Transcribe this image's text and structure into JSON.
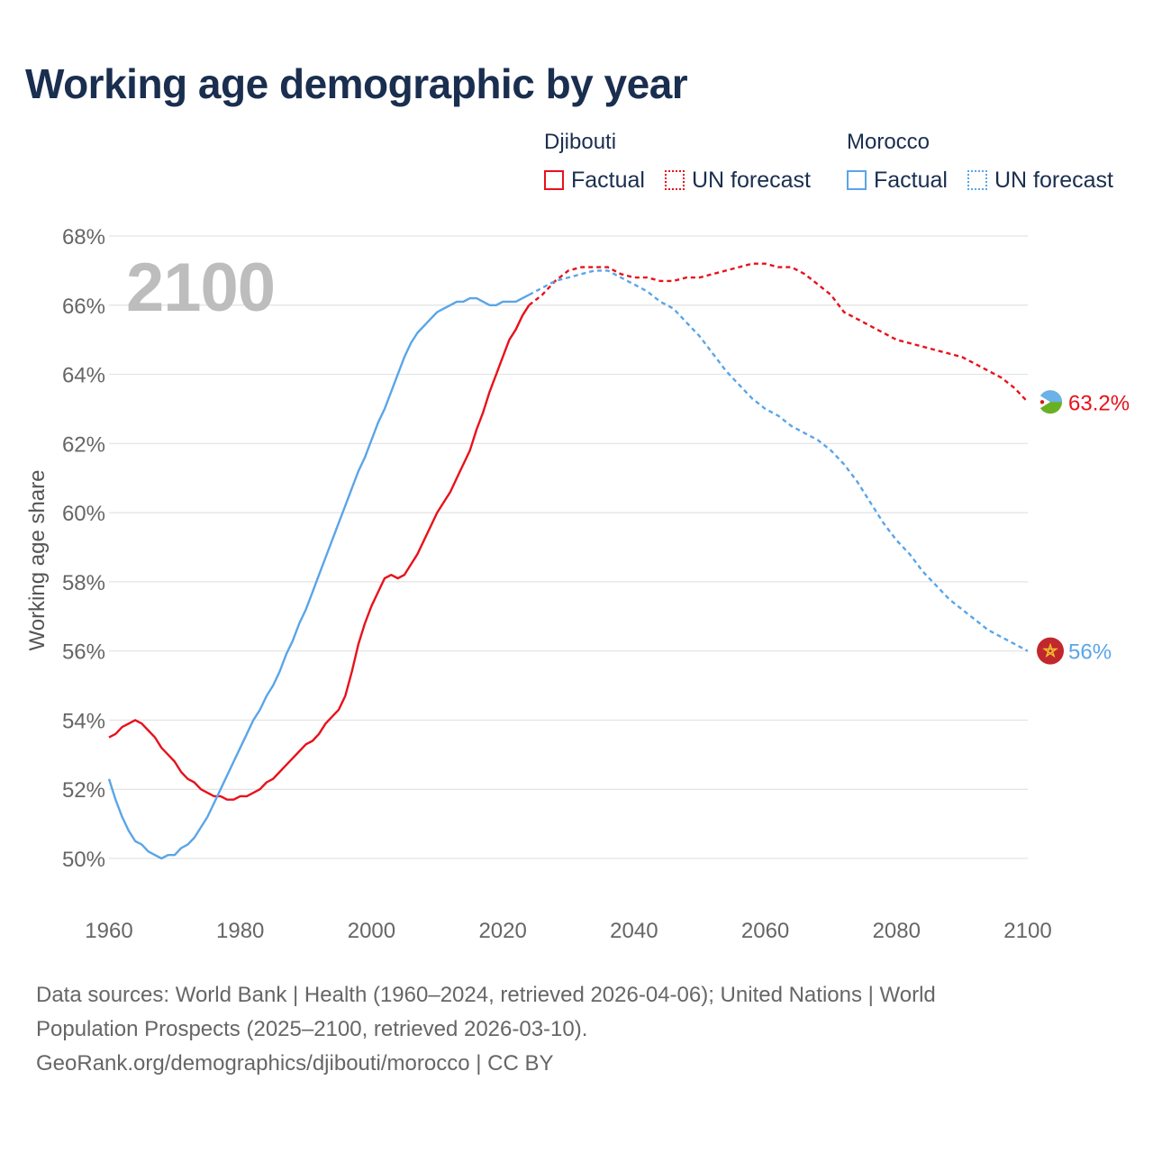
{
  "title": "Working age demographic by year",
  "legend": {
    "groups": [
      {
        "name": "Djibouti",
        "color": "#e8111b",
        "factual_label": "Factual",
        "forecast_label": "UN forecast"
      },
      {
        "name": "Morocco",
        "color": "#5aa5e8",
        "factual_label": "Factual",
        "forecast_label": "UN forecast"
      }
    ]
  },
  "year_display": "2100",
  "footer": {
    "line1": "Data sources: World Bank | Health (1960–2024, retrieved 2026-04-06); United Nations | World",
    "line2": "Population Prospects (2025–2100, retrieved 2026-03-10).",
    "line3": "GeoRank.org/demographics/djibouti/morocco | CC BY"
  },
  "chart_data": {
    "type": "line",
    "title": "Working age demographic by year",
    "xlabel": "",
    "ylabel": "Working age share",
    "xlim": [
      1960,
      2100
    ],
    "ylim": [
      49,
      68
    ],
    "x_ticks": [
      1960,
      1980,
      2000,
      2020,
      2040,
      2060,
      2080,
      2100
    ],
    "y_ticks": [
      50,
      52,
      54,
      56,
      58,
      60,
      62,
      64,
      66,
      68
    ],
    "y_tick_suffix": "%",
    "grid": true,
    "forecast_start": 2024,
    "series": [
      {
        "name": "Djibouti",
        "color": "#e8111b",
        "end_label": "63.2%",
        "points": [
          [
            1960,
            53.5
          ],
          [
            1961,
            53.6
          ],
          [
            1962,
            53.8
          ],
          [
            1963,
            53.9
          ],
          [
            1964,
            54.0
          ],
          [
            1965,
            53.9
          ],
          [
            1966,
            53.7
          ],
          [
            1967,
            53.5
          ],
          [
            1968,
            53.2
          ],
          [
            1969,
            53.0
          ],
          [
            1970,
            52.8
          ],
          [
            1971,
            52.5
          ],
          [
            1972,
            52.3
          ],
          [
            1973,
            52.2
          ],
          [
            1974,
            52.0
          ],
          [
            1975,
            51.9
          ],
          [
            1976,
            51.8
          ],
          [
            1977,
            51.8
          ],
          [
            1978,
            51.7
          ],
          [
            1979,
            51.7
          ],
          [
            1980,
            51.8
          ],
          [
            1981,
            51.8
          ],
          [
            1982,
            51.9
          ],
          [
            1983,
            52.0
          ],
          [
            1984,
            52.2
          ],
          [
            1985,
            52.3
          ],
          [
            1986,
            52.5
          ],
          [
            1987,
            52.7
          ],
          [
            1988,
            52.9
          ],
          [
            1989,
            53.1
          ],
          [
            1990,
            53.3
          ],
          [
            1991,
            53.4
          ],
          [
            1992,
            53.6
          ],
          [
            1993,
            53.9
          ],
          [
            1994,
            54.1
          ],
          [
            1995,
            54.3
          ],
          [
            1996,
            54.7
          ],
          [
            1997,
            55.4
          ],
          [
            1998,
            56.2
          ],
          [
            1999,
            56.8
          ],
          [
            2000,
            57.3
          ],
          [
            2001,
            57.7
          ],
          [
            2002,
            58.1
          ],
          [
            2003,
            58.2
          ],
          [
            2004,
            58.1
          ],
          [
            2005,
            58.2
          ],
          [
            2006,
            58.5
          ],
          [
            2007,
            58.8
          ],
          [
            2008,
            59.2
          ],
          [
            2009,
            59.6
          ],
          [
            2010,
            60.0
          ],
          [
            2011,
            60.3
          ],
          [
            2012,
            60.6
          ],
          [
            2013,
            61.0
          ],
          [
            2014,
            61.4
          ],
          [
            2015,
            61.8
          ],
          [
            2016,
            62.4
          ],
          [
            2017,
            62.9
          ],
          [
            2018,
            63.5
          ],
          [
            2019,
            64.0
          ],
          [
            2020,
            64.5
          ],
          [
            2021,
            65.0
          ],
          [
            2022,
            65.3
          ],
          [
            2023,
            65.7
          ],
          [
            2024,
            66.0
          ],
          [
            2026,
            66.3
          ],
          [
            2028,
            66.7
          ],
          [
            2030,
            67.0
          ],
          [
            2032,
            67.1
          ],
          [
            2034,
            67.1
          ],
          [
            2036,
            67.1
          ],
          [
            2038,
            66.9
          ],
          [
            2040,
            66.8
          ],
          [
            2042,
            66.8
          ],
          [
            2044,
            66.7
          ],
          [
            2046,
            66.7
          ],
          [
            2048,
            66.8
          ],
          [
            2050,
            66.8
          ],
          [
            2052,
            66.9
          ],
          [
            2054,
            67.0
          ],
          [
            2056,
            67.1
          ],
          [
            2058,
            67.2
          ],
          [
            2060,
            67.2
          ],
          [
            2062,
            67.1
          ],
          [
            2064,
            67.1
          ],
          [
            2066,
            66.9
          ],
          [
            2068,
            66.6
          ],
          [
            2070,
            66.3
          ],
          [
            2072,
            65.8
          ],
          [
            2074,
            65.6
          ],
          [
            2076,
            65.4
          ],
          [
            2078,
            65.2
          ],
          [
            2080,
            65.0
          ],
          [
            2082,
            64.9
          ],
          [
            2084,
            64.8
          ],
          [
            2086,
            64.7
          ],
          [
            2088,
            64.6
          ],
          [
            2090,
            64.5
          ],
          [
            2092,
            64.3
          ],
          [
            2094,
            64.1
          ],
          [
            2096,
            63.9
          ],
          [
            2098,
            63.6
          ],
          [
            2100,
            63.2
          ]
        ]
      },
      {
        "name": "Morocco",
        "color": "#5aa5e8",
        "end_label": "56%",
        "points": [
          [
            1960,
            52.3
          ],
          [
            1961,
            51.7
          ],
          [
            1962,
            51.2
          ],
          [
            1963,
            50.8
          ],
          [
            1964,
            50.5
          ],
          [
            1965,
            50.4
          ],
          [
            1966,
            50.2
          ],
          [
            1967,
            50.1
          ],
          [
            1968,
            50.0
          ],
          [
            1969,
            50.1
          ],
          [
            1970,
            50.1
          ],
          [
            1971,
            50.3
          ],
          [
            1972,
            50.4
          ],
          [
            1973,
            50.6
          ],
          [
            1974,
            50.9
          ],
          [
            1975,
            51.2
          ],
          [
            1976,
            51.6
          ],
          [
            1977,
            52.0
          ],
          [
            1978,
            52.4
          ],
          [
            1979,
            52.8
          ],
          [
            1980,
            53.2
          ],
          [
            1981,
            53.6
          ],
          [
            1982,
            54.0
          ],
          [
            1983,
            54.3
          ],
          [
            1984,
            54.7
          ],
          [
            1985,
            55.0
          ],
          [
            1986,
            55.4
          ],
          [
            1987,
            55.9
          ],
          [
            1988,
            56.3
          ],
          [
            1989,
            56.8
          ],
          [
            1990,
            57.2
          ],
          [
            1991,
            57.7
          ],
          [
            1992,
            58.2
          ],
          [
            1993,
            58.7
          ],
          [
            1994,
            59.2
          ],
          [
            1995,
            59.7
          ],
          [
            1996,
            60.2
          ],
          [
            1997,
            60.7
          ],
          [
            1998,
            61.2
          ],
          [
            1999,
            61.6
          ],
          [
            2000,
            62.1
          ],
          [
            2001,
            62.6
          ],
          [
            2002,
            63.0
          ],
          [
            2003,
            63.5
          ],
          [
            2004,
            64.0
          ],
          [
            2005,
            64.5
          ],
          [
            2006,
            64.9
          ],
          [
            2007,
            65.2
          ],
          [
            2008,
            65.4
          ],
          [
            2009,
            65.6
          ],
          [
            2010,
            65.8
          ],
          [
            2011,
            65.9
          ],
          [
            2012,
            66.0
          ],
          [
            2013,
            66.1
          ],
          [
            2014,
            66.1
          ],
          [
            2015,
            66.2
          ],
          [
            2016,
            66.2
          ],
          [
            2017,
            66.1
          ],
          [
            2018,
            66.0
          ],
          [
            2019,
            66.0
          ],
          [
            2020,
            66.1
          ],
          [
            2021,
            66.1
          ],
          [
            2022,
            66.1
          ],
          [
            2023,
            66.2
          ],
          [
            2024,
            66.3
          ],
          [
            2026,
            66.5
          ],
          [
            2028,
            66.7
          ],
          [
            2030,
            66.8
          ],
          [
            2032,
            66.9
          ],
          [
            2034,
            67.0
          ],
          [
            2036,
            67.0
          ],
          [
            2038,
            66.8
          ],
          [
            2040,
            66.6
          ],
          [
            2042,
            66.4
          ],
          [
            2044,
            66.1
          ],
          [
            2046,
            65.9
          ],
          [
            2048,
            65.5
          ],
          [
            2050,
            65.1
          ],
          [
            2052,
            64.6
          ],
          [
            2054,
            64.1
          ],
          [
            2056,
            63.7
          ],
          [
            2058,
            63.3
          ],
          [
            2060,
            63.0
          ],
          [
            2062,
            62.8
          ],
          [
            2064,
            62.5
          ],
          [
            2066,
            62.3
          ],
          [
            2068,
            62.1
          ],
          [
            2070,
            61.8
          ],
          [
            2072,
            61.4
          ],
          [
            2074,
            60.9
          ],
          [
            2076,
            60.3
          ],
          [
            2078,
            59.7
          ],
          [
            2080,
            59.2
          ],
          [
            2082,
            58.8
          ],
          [
            2084,
            58.3
          ],
          [
            2086,
            57.9
          ],
          [
            2088,
            57.5
          ],
          [
            2090,
            57.2
          ],
          [
            2092,
            56.9
          ],
          [
            2094,
            56.6
          ],
          [
            2096,
            56.4
          ],
          [
            2098,
            56.2
          ],
          [
            2100,
            56.0
          ]
        ]
      }
    ]
  }
}
